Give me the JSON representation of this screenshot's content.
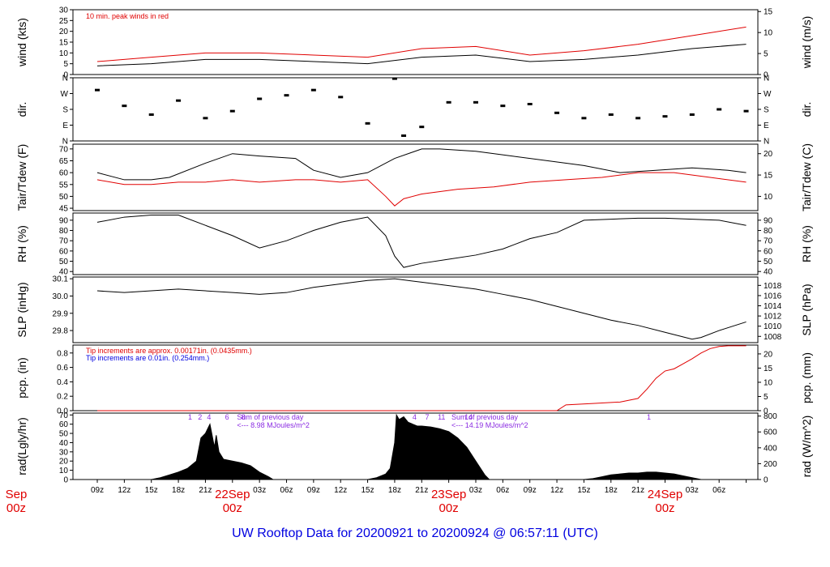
{
  "footer": "UW Rooftop Data for 20200921  to  20200924 @ 06:57:11  (UTC)",
  "colors": {
    "red": "#e00000",
    "blue": "#0000e0",
    "purple": "#8a2be2",
    "black": "#000000"
  },
  "chart_data": [
    {
      "type": "line",
      "key": "wind",
      "ylabel_left": "wind (kts)",
      "ylabel_right": "wind (m/s)",
      "annotation": "10 min. peak winds in red",
      "ylim": [
        0,
        30
      ],
      "yticks_left": [
        0,
        5,
        10,
        15,
        20,
        25,
        30
      ],
      "ylim_right": [
        0,
        15.43
      ],
      "yticks_right": [
        0,
        5,
        10,
        15
      ],
      "series": [
        {
          "color": "#000000",
          "x": [
            0,
            6,
            12,
            18,
            24,
            30,
            36,
            42,
            48,
            54,
            60,
            66,
            72
          ],
          "y": [
            4,
            5,
            7,
            7,
            6,
            5,
            8,
            9,
            6,
            7,
            9,
            12,
            14
          ]
        },
        {
          "color": "#e00000",
          "x": [
            0,
            6,
            12,
            18,
            24,
            30,
            36,
            42,
            48,
            54,
            60,
            66,
            72
          ],
          "y": [
            6,
            8,
            10,
            10,
            9,
            8,
            12,
            13,
            9,
            11,
            14,
            18,
            22
          ]
        }
      ]
    },
    {
      "type": "scatter",
      "key": "dir",
      "ylabel_left": "dir.",
      "ylabel_right": "dir.",
      "ylim": [
        0,
        360
      ],
      "ytick_values": [
        0,
        90,
        180,
        270,
        360
      ],
      "ytick_labels": [
        "N",
        "E",
        "S",
        "W",
        "N"
      ],
      "series": [
        {
          "color": "#000000",
          "x": [
            0,
            3,
            6,
            9,
            12,
            15,
            18,
            21,
            24,
            27,
            30,
            33,
            34,
            36,
            39,
            42,
            45,
            48,
            51,
            54,
            57,
            60,
            63,
            66,
            69,
            72
          ],
          "y": [
            290,
            200,
            150,
            230,
            130,
            170,
            240,
            260,
            290,
            250,
            100,
            355,
            30,
            80,
            220,
            220,
            200,
            210,
            160,
            130,
            150,
            130,
            140,
            150,
            180,
            170
          ]
        }
      ]
    },
    {
      "type": "line",
      "key": "temp",
      "ylabel_left": "Tair/Tdew (F)",
      "ylabel_right": "Tair/Tdew (C)",
      "ylim": [
        44,
        72
      ],
      "yticks_left": [
        45,
        50,
        55,
        60,
        65,
        70
      ],
      "yticks_right": [
        10,
        15,
        20
      ],
      "series": [
        {
          "color": "#000000",
          "x": [
            0,
            3,
            6,
            8,
            12,
            15,
            18,
            22,
            24,
            27,
            30,
            33,
            36,
            38,
            42,
            46,
            50,
            54,
            58,
            62,
            66,
            70,
            72
          ],
          "y": [
            60,
            57,
            57,
            58,
            64,
            68,
            67,
            66,
            61,
            58,
            60,
            66,
            70,
            70,
            69,
            67,
            65,
            63,
            60,
            61,
            62,
            61,
            60
          ]
        },
        {
          "color": "#e00000",
          "x": [
            0,
            3,
            6,
            9,
            12,
            15,
            18,
            22,
            24,
            27,
            30,
            32,
            33,
            34,
            36,
            40,
            44,
            48,
            52,
            56,
            60,
            64,
            68,
            72
          ],
          "y": [
            57,
            55,
            55,
            56,
            56,
            57,
            56,
            57,
            57,
            56,
            57,
            50,
            46,
            49,
            51,
            53,
            54,
            56,
            57,
            58,
            60,
            60,
            58,
            56
          ]
        }
      ]
    },
    {
      "type": "line",
      "key": "rh",
      "ylabel_left": "RH (%)",
      "ylabel_right": "RH (%)",
      "ylim": [
        37,
        97
      ],
      "yticks_left": [
        40,
        50,
        60,
        70,
        80,
        90
      ],
      "yticks_right": [
        40,
        50,
        60,
        70,
        80,
        90
      ],
      "series": [
        {
          "color": "#000000",
          "x": [
            0,
            3,
            6,
            9,
            12,
            15,
            18,
            21,
            24,
            27,
            30,
            32,
            33,
            34,
            36,
            39,
            42,
            45,
            48,
            51,
            54,
            57,
            60,
            63,
            66,
            69,
            72
          ],
          "y": [
            88,
            93,
            95,
            95,
            85,
            75,
            63,
            70,
            80,
            88,
            93,
            75,
            55,
            44,
            48,
            52,
            56,
            62,
            72,
            78,
            90,
            91,
            92,
            92,
            91,
            90,
            85
          ]
        }
      ]
    },
    {
      "type": "line",
      "key": "slp",
      "ylabel_left": "SLP (inHg)",
      "ylabel_right": "SLP (hPa)",
      "ylim": [
        29.73,
        30.11
      ],
      "yticks_left": [
        29.8,
        29.9,
        30.0,
        30.1
      ],
      "yticks_left_labels": [
        "29.8",
        "29.9",
        "30.0",
        "30.1"
      ],
      "yticks_right": [
        1008,
        1010,
        1012,
        1014,
        1016,
        1018
      ],
      "series": [
        {
          "color": "#000000",
          "x": [
            0,
            3,
            6,
            9,
            12,
            15,
            18,
            21,
            24,
            27,
            30,
            33,
            36,
            39,
            42,
            45,
            48,
            51,
            54,
            57,
            60,
            63,
            66,
            67,
            69,
            72
          ],
          "y": [
            30.03,
            30.02,
            30.03,
            30.04,
            30.03,
            30.02,
            30.01,
            30.02,
            30.05,
            30.07,
            30.09,
            30.1,
            30.08,
            30.06,
            30.04,
            30.01,
            29.98,
            29.94,
            29.9,
            29.86,
            29.83,
            29.79,
            29.75,
            29.76,
            29.8,
            29.85
          ]
        }
      ]
    },
    {
      "type": "area",
      "key": "pcp",
      "ylabel_left": "pcp. (in)",
      "ylabel_right": "pcp. (mm)",
      "note_red": "Tip increments are approx. 0.00171in. (0.0435mm.)",
      "note_blue": "Tip increments are 0.01in. (0.254mm.)",
      "ylim": [
        0,
        0.91
      ],
      "yticks_left": [
        0.0,
        0.2,
        0.4,
        0.6,
        0.8
      ],
      "yticks_left_labels": [
        "0.0",
        "0.2",
        "0.4",
        "0.6",
        "0.8"
      ],
      "yticks_right": [
        0,
        5,
        10,
        15,
        20
      ],
      "series": [
        {
          "color": "#e00000",
          "x": [
            0,
            51,
            52,
            55,
            58,
            60,
            61,
            62,
            63,
            64,
            65,
            66,
            67,
            68,
            69,
            70,
            71,
            72
          ],
          "y": [
            0,
            0,
            0.08,
            0.1,
            0.12,
            0.17,
            0.3,
            0.45,
            0.55,
            0.58,
            0.65,
            0.72,
            0.8,
            0.86,
            0.89,
            0.9,
            0.9,
            0.9
          ]
        }
      ]
    },
    {
      "type": "area",
      "key": "rad",
      "ylabel_left": "rad(Lgly/hr)",
      "ylabel_right": "rad (W/m^2)",
      "ylim": [
        0,
        72
      ],
      "yticks_left": [
        0,
        10,
        20,
        30,
        40,
        50,
        60,
        70
      ],
      "yticks_right": [
        0,
        200,
        400,
        600,
        800
      ],
      "labels_day1": [
        "1",
        "2",
        "4",
        "6",
        "8"
      ],
      "labels_day1_x": [
        10.3,
        11.4,
        12.4,
        14.4,
        16.2
      ],
      "labels_day2": [
        "4",
        "7",
        "11",
        "14"
      ],
      "labels_day2_x": [
        35.2,
        36.6,
        38.2,
        41.2
      ],
      "labels_day3": [
        "1"
      ],
      "labels_day3_x": [
        61.2
      ],
      "sum_label": "Sum of previous day",
      "sum_day1": "<--- 8.98 MJoules/m^2",
      "sum_day2": "<--- 14.19 MJoules/m^2",
      "series": [
        {
          "color": "#000000",
          "x": [
            6,
            7,
            8,
            9,
            10,
            11,
            11.5,
            12,
            12.5,
            13,
            13.2,
            13.5,
            14,
            15,
            16,
            17,
            18,
            19,
            19.5
          ],
          "y": [
            0,
            2,
            5,
            8,
            12,
            20,
            45,
            50,
            60,
            35,
            48,
            30,
            22,
            20,
            18,
            15,
            8,
            3,
            0
          ]
        },
        {
          "color": "#000000",
          "x": [
            30,
            31,
            32,
            32.5,
            33,
            33.2,
            33.5,
            34,
            34.5,
            35,
            35.5,
            36,
            37,
            38,
            39,
            40,
            41,
            42,
            43,
            43.5
          ],
          "y": [
            0,
            2,
            6,
            12,
            40,
            70,
            65,
            68,
            62,
            60,
            58,
            58,
            57,
            55,
            52,
            45,
            35,
            20,
            5,
            0
          ]
        },
        {
          "color": "#000000",
          "x": [
            54,
            55,
            56,
            57,
            58,
            59,
            60,
            61,
            62,
            63,
            64,
            65,
            66,
            67
          ],
          "y": [
            0,
            1,
            3,
            5,
            6,
            7,
            7,
            8,
            8,
            7,
            6,
            4,
            2,
            0
          ]
        }
      ]
    }
  ],
  "xaxis": {
    "ticks_hours": [
      0,
      3,
      6,
      9,
      12,
      15,
      18,
      21,
      24,
      27,
      30,
      33,
      36,
      39,
      42,
      45,
      48,
      51,
      54,
      57,
      60,
      63,
      66,
      69,
      72
    ],
    "ticks_labels": [
      "09z",
      "12z",
      "15z",
      "18z",
      "21z",
      "",
      "03z",
      "06z",
      "09z",
      "12z",
      "15z",
      "18z",
      "21z",
      "",
      "03z",
      "06z",
      "09z",
      "12z",
      "15z",
      "18z",
      "21z",
      "",
      "03z",
      "06z",
      ""
    ],
    "date_labels": [
      {
        "hour": -9,
        "text1": "Sep",
        "text2": "00z"
      },
      {
        "hour": 15,
        "text1": "22Sep",
        "text2": "00z"
      },
      {
        "hour": 39,
        "text1": "23Sep",
        "text2": "00z"
      },
      {
        "hour": 63,
        "text1": "24Sep",
        "text2": "00z"
      }
    ]
  }
}
